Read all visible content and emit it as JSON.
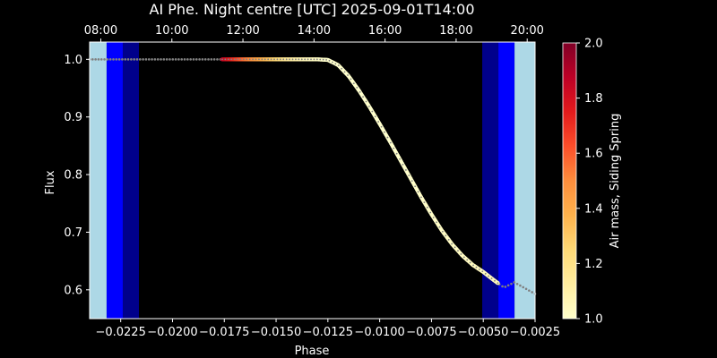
{
  "chart_data": {
    "type": "scatter",
    "title": "AI Phe. Night centre [UTC] 2025-09-01T14:00",
    "xlabel": "Phase",
    "ylabel": "Flux",
    "xlim": [
      -0.024,
      -0.0025
    ],
    "ylim": [
      0.55,
      1.03
    ],
    "x_ticks": [
      -0.0225,
      -0.02,
      -0.0175,
      -0.015,
      -0.0125,
      -0.01,
      -0.0075,
      -0.005,
      -0.0025
    ],
    "x_tick_labels": [
      "−0.0225",
      "−0.0200",
      "−0.0175",
      "−0.0150",
      "−0.0125",
      "−0.0100",
      "−0.0075",
      "−0.0050",
      "−0.0025"
    ],
    "y_ticks": [
      0.6,
      0.7,
      0.8,
      0.9,
      1.0
    ],
    "y_tick_labels": [
      "0.6",
      "0.7",
      "0.8",
      "0.9",
      "1.0"
    ],
    "top_axis": {
      "ticks": [
        -0.02346,
        -0.02003,
        -0.0166,
        -0.01317,
        -0.00974,
        -0.00631,
        -0.00288
      ],
      "labels": [
        "08:00",
        "10:00",
        "12:00",
        "14:00",
        "16:00",
        "18:00",
        "20:00"
      ]
    },
    "twilight_bands": [
      {
        "x0": -0.024,
        "x1": -0.02318,
        "color": "#add8e6"
      },
      {
        "x0": -0.02318,
        "x1": -0.0224,
        "color": "#0000ff"
      },
      {
        "x0": -0.0224,
        "x1": -0.02162,
        "color": "#00008b"
      },
      {
        "x0": -0.00505,
        "x1": -0.00427,
        "color": "#00008b"
      },
      {
        "x0": -0.00427,
        "x1": -0.00349,
        "color": "#0000ff"
      },
      {
        "x0": -0.00349,
        "x1": -0.0025,
        "color": "#add8e6"
      }
    ],
    "model_curve": {
      "color": "#808080",
      "points": [
        [
          -0.024,
          1.0
        ],
        [
          -0.022,
          1.0
        ],
        [
          -0.02,
          1.0
        ],
        [
          -0.018,
          1.0
        ],
        [
          -0.016,
          1.0
        ],
        [
          -0.014,
          1.0
        ],
        [
          -0.013,
          1.0
        ],
        [
          -0.0125,
          0.999
        ],
        [
          -0.012,
          0.99
        ],
        [
          -0.0115,
          0.971
        ],
        [
          -0.011,
          0.946
        ],
        [
          -0.0105,
          0.918
        ],
        [
          -0.01,
          0.888
        ],
        [
          -0.0095,
          0.857
        ],
        [
          -0.009,
          0.825
        ],
        [
          -0.0085,
          0.793
        ],
        [
          -0.008,
          0.761
        ],
        [
          -0.0075,
          0.731
        ],
        [
          -0.007,
          0.703
        ],
        [
          -0.0065,
          0.679
        ],
        [
          -0.006,
          0.659
        ],
        [
          -0.0055,
          0.643
        ],
        [
          -0.005,
          0.631
        ],
        [
          -0.0045,
          0.617
        ],
        [
          -0.004,
          0.604
        ],
        [
          -0.0035,
          0.613
        ],
        [
          -0.003,
          0.603
        ],
        [
          -0.0025,
          0.593
        ]
      ]
    },
    "observed": {
      "x_range": [
        -0.0176,
        -0.0043
      ],
      "airmass_stops": [
        [
          -0.0176,
          1.85
        ],
        [
          -0.0165,
          1.55
        ],
        [
          -0.0155,
          1.35
        ],
        [
          -0.0145,
          1.15
        ],
        [
          -0.0135,
          1.05
        ],
        [
          -0.0125,
          1.0
        ],
        [
          -0.009,
          1.0
        ],
        [
          -0.0043,
          1.05
        ]
      ]
    },
    "colorbar": {
      "label": "Air mass, Siding Spring",
      "range": [
        1.0,
        2.0
      ],
      "ticks": [
        1.0,
        1.2,
        1.4,
        1.6,
        1.8,
        2.0
      ],
      "tick_labels": [
        "1.0",
        "1.2",
        "1.4",
        "1.6",
        "1.8",
        "2.0"
      ],
      "colormap": [
        "#ffffcc",
        "#ffeda0",
        "#fed976",
        "#feb24c",
        "#fd8d3c",
        "#fc4e2a",
        "#e31a1c",
        "#bd0026",
        "#800026"
      ]
    }
  }
}
